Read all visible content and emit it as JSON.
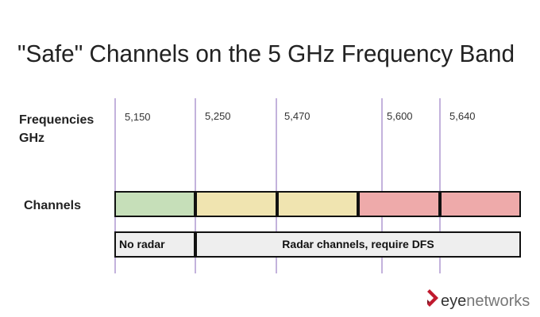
{
  "header": {
    "title": "\"Safe\" Channels on the 5 GHz Frequency Band"
  },
  "frequencies": {
    "label": [
      "Frequencies",
      "GHz"
    ],
    "values": [
      "5,150",
      "5,250",
      "5,470",
      "5,600",
      "5,640"
    ]
  },
  "channels": {
    "label": "Channels"
  },
  "radar": {
    "segments": [
      "No radar",
      "Radar channels, require DFS"
    ]
  },
  "logo": {
    "parts": [
      "eye",
      "networks"
    ]
  }
}
